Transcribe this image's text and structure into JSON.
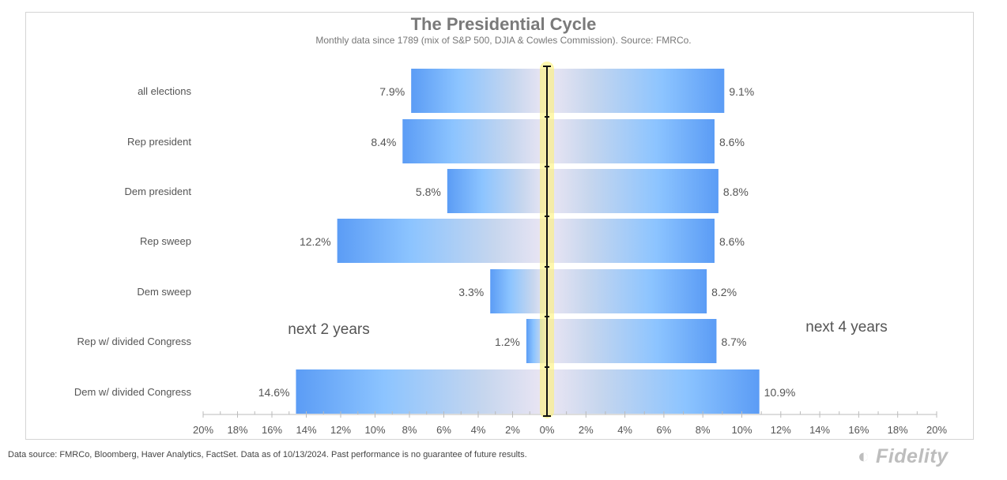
{
  "chart_data": {
    "type": "bar",
    "title": "The Presidential Cycle",
    "subtitle": "Monthly data since 1789 (mix of S&P 500, DJIA & Cowles Commission). Source: FMRCo.",
    "categories": [
      "all elections",
      "Rep president",
      "Dem president",
      "Rep sweep",
      "Dem sweep",
      "Rep w/ divided Congress",
      "Dem w/ divided Congress"
    ],
    "series": [
      {
        "name": "next 2 years",
        "values": [
          7.9,
          8.4,
          5.8,
          12.2,
          3.3,
          1.2,
          14.6
        ],
        "side": "left"
      },
      {
        "name": "next 4 years",
        "values": [
          9.1,
          8.6,
          8.8,
          8.6,
          8.2,
          8.7,
          10.9
        ],
        "side": "right"
      }
    ],
    "xlim": [
      -20,
      20
    ],
    "x_ticks": [
      "20%",
      "18%",
      "16%",
      "14%",
      "12%",
      "10%",
      "8%",
      "6%",
      "4%",
      "2%",
      "0%",
      "2%",
      "4%",
      "6%",
      "8%",
      "10%",
      "12%",
      "14%",
      "16%",
      "18%",
      "20%"
    ],
    "grid": false,
    "colors": {
      "bar_edge": "#5b9cf5",
      "bar_mid": "#8cc4ff",
      "bar_center": "#ece6f3",
      "center_glow": "#fff36b"
    }
  },
  "footer": "Data source: FMRCo, Bloomberg, Haver Analytics, FactSet. Data as of 10/13/2024. Past performance is no guarantee of future results.",
  "logo": "Fidelity"
}
